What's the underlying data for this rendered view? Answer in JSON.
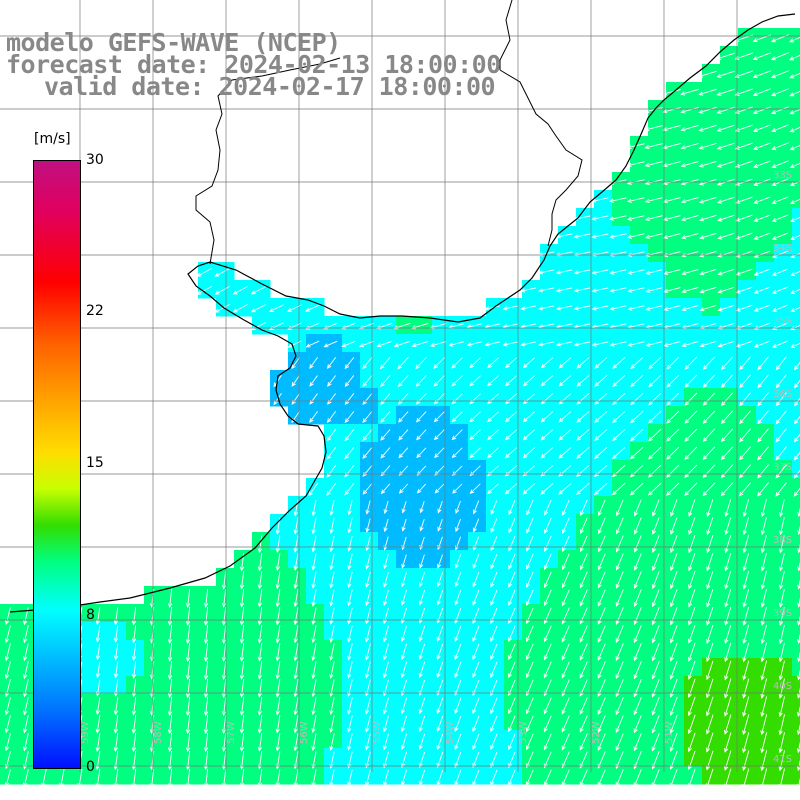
{
  "title": {
    "line1": "modelo GEFS-WAVE (NCEP)",
    "line2": "forecast date: 2024-02-13 18:00:00",
    "line3": "valid date: 2024-02-17 18:00:00"
  },
  "colorbar": {
    "unit": "[m/s]",
    "ticks": [
      {
        "label": "30",
        "value": 30
      },
      {
        "label": "22",
        "value": 22
      },
      {
        "label": "15",
        "value": 15
      },
      {
        "label": "8",
        "value": 8
      },
      {
        "label": "0",
        "value": 0
      }
    ],
    "colors": [
      "#0010ff",
      "#0077ff",
      "#00bbff",
      "#00ffff",
      "#00ff80",
      "#33dd00",
      "#c8ff00",
      "#ffdd00",
      "#ff9900",
      "#ff6000",
      "#ff0000",
      "#e00060",
      "#c01080"
    ]
  },
  "latitude_labels": [
    "33S",
    "34S",
    "35S",
    "36S",
    "37S",
    "38S",
    "39S",
    "40S",
    "41S"
  ],
  "longitude_labels": [
    "59W",
    "58W",
    "57W",
    "56W",
    "55W",
    "54W",
    "53W",
    "52W",
    "51W"
  ],
  "field": {
    "variable": "wind speed with direction arrows",
    "dominant_direction": "southwest to south",
    "speed_range_m_s": [
      4,
      13
    ]
  }
}
